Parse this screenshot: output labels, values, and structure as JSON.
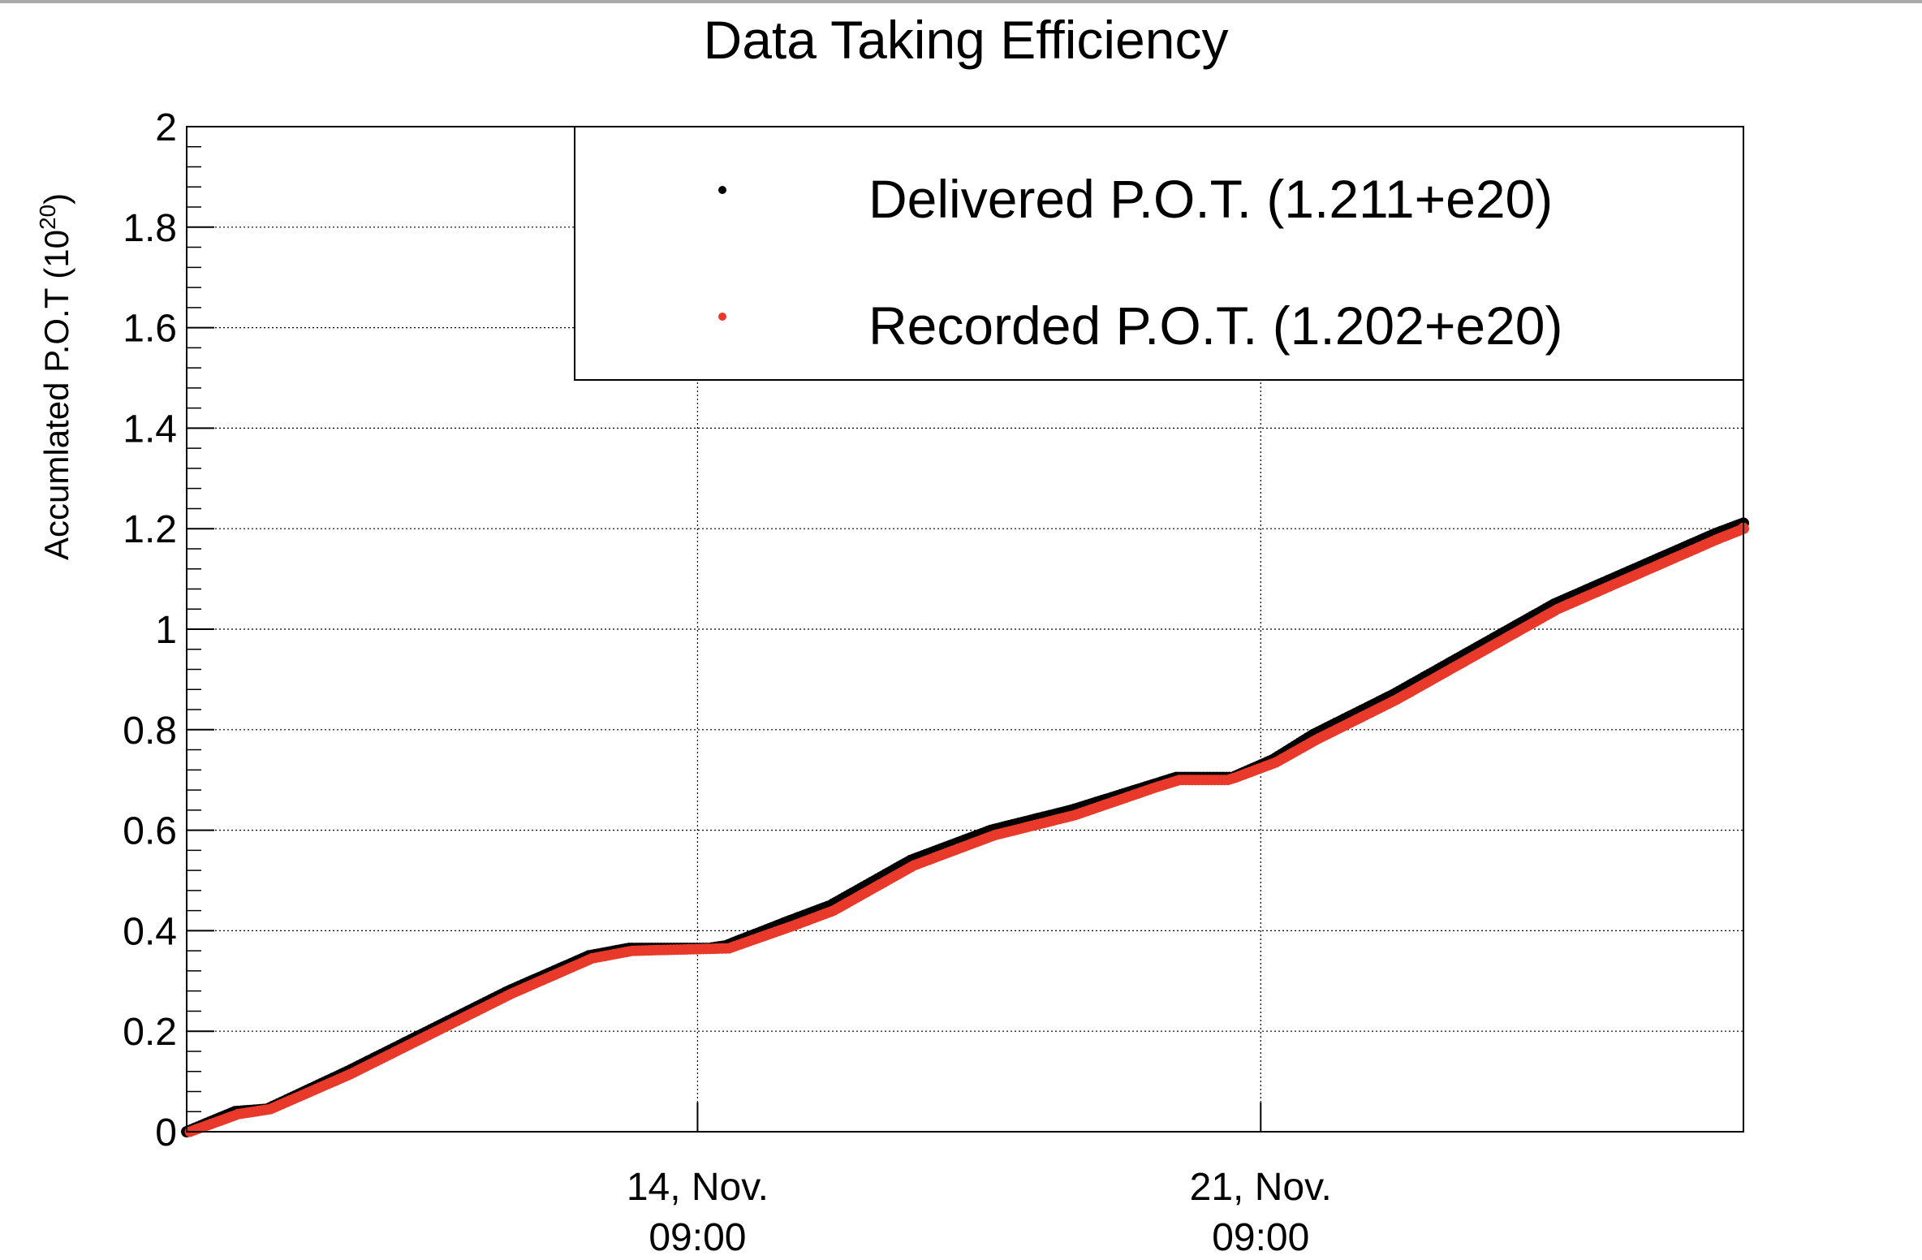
{
  "chart_data": {
    "type": "scatter",
    "title": "Data Taking Efficiency",
    "ylabel": {
      "base": "Accumlated P.O.T (10",
      "sup": "20",
      "end": ")"
    },
    "ylim": [
      0,
      2
    ],
    "yticks": [
      "0",
      "0.2",
      "0.4",
      "0.6",
      "0.8",
      "1",
      "1.2",
      "1.4",
      "1.6",
      "1.8",
      "2"
    ],
    "x_unit": "days",
    "xlim": [
      0,
      19.35
    ],
    "xticks": [
      {
        "x": 6.35,
        "line1": "14, Nov.",
        "line2": "09:00"
      },
      {
        "x": 13.35,
        "line1": "21, Nov.",
        "line2": "09:00"
      }
    ],
    "grid": true,
    "legend": {
      "placement": "top-right",
      "entries": [
        {
          "label": "Delivered P.O.T. (1.211+e20)",
          "color": "#000000"
        },
        {
          "label": "Recorded P.O.T. (1.202+e20)",
          "color": "#e8392b"
        }
      ]
    },
    "series": [
      {
        "name": "Delivered P.O.T. (1.211+e20)",
        "color": "#000000",
        "x": [
          0,
          0.6,
          1.0,
          2.0,
          3.0,
          4.0,
          5.0,
          5.5,
          6.5,
          6.7,
          7.5,
          8.0,
          9.0,
          10.0,
          11.0,
          12.0,
          12.3,
          12.6,
          13.0,
          13.5,
          14.0,
          15.0,
          16.0,
          17.0,
          18.0,
          19.0,
          19.35
        ],
        "y": [
          0,
          0.04,
          0.045,
          0.12,
          0.2,
          0.28,
          0.35,
          0.365,
          0.365,
          0.37,
          0.42,
          0.45,
          0.54,
          0.6,
          0.64,
          0.69,
          0.705,
          0.705,
          0.705,
          0.74,
          0.79,
          0.87,
          0.96,
          1.05,
          1.12,
          1.19,
          1.211
        ]
      },
      {
        "name": "Recorded P.O.T. (1.202+e20)",
        "color": "#e8392b",
        "x": [
          0,
          0.6,
          1.0,
          2.0,
          3.0,
          4.0,
          5.0,
          5.5,
          6.7,
          7.5,
          8.0,
          9.0,
          10.0,
          11.0,
          12.0,
          12.3,
          12.9,
          13.0,
          13.5,
          14.0,
          15.0,
          16.0,
          17.0,
          18.0,
          19.0,
          19.35
        ],
        "y": [
          0,
          0.035,
          0.045,
          0.115,
          0.195,
          0.275,
          0.345,
          0.36,
          0.365,
          0.41,
          0.44,
          0.53,
          0.59,
          0.63,
          0.685,
          0.7,
          0.7,
          0.705,
          0.735,
          0.78,
          0.86,
          0.95,
          1.04,
          1.11,
          1.18,
          1.202
        ]
      }
    ]
  }
}
